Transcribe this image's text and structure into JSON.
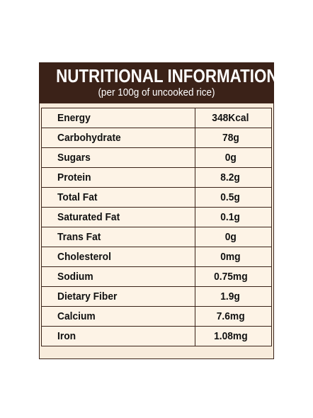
{
  "title": "NUTRITIONAL INFORMATION",
  "subtitle": "(per 100g of uncooked rice)",
  "rows": [
    {
      "label": "Energy",
      "value": "348Kcal"
    },
    {
      "label": "Carbohydrate",
      "value": "78g"
    },
    {
      "label": "Sugars",
      "value": "0g"
    },
    {
      "label": "Protein",
      "value": "8.2g"
    },
    {
      "label": "Total Fat",
      "value": "0.5g"
    },
    {
      "label": "Saturated Fat",
      "value": "0.1g"
    },
    {
      "label": "Trans Fat",
      "value": "0g"
    },
    {
      "label": "Cholesterol",
      "value": "0mg"
    },
    {
      "label": "Sodium",
      "value": "0.75mg"
    },
    {
      "label": "Dietary Fiber",
      "value": "1.9g"
    },
    {
      "label": "Calcium",
      "value": "7.6mg"
    },
    {
      "label": "Iron",
      "value": "1.08mg"
    }
  ],
  "colors": {
    "header_background": "#3b2218",
    "panel_background": "#f8ecdc",
    "border": "#3a2218"
  }
}
